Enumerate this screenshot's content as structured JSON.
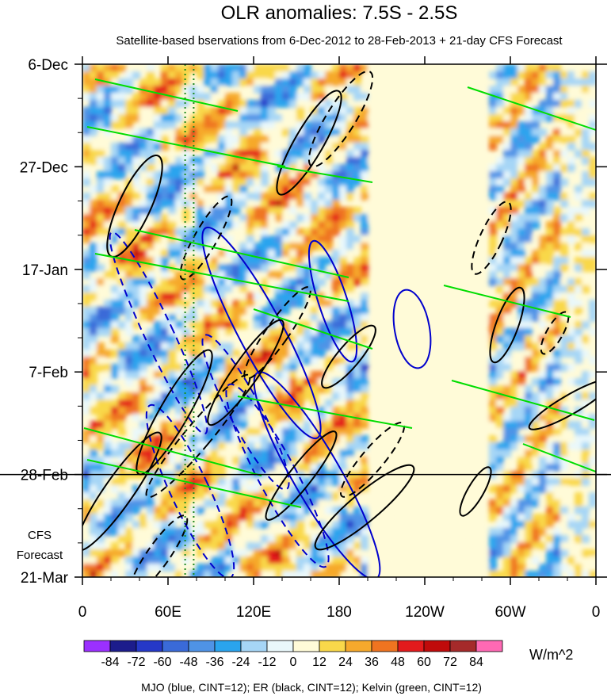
{
  "chart_data": {
    "type": "heatmap",
    "title": "OLR anomalies: 7.5S - 2.5S",
    "subtitle": "Satellite-based bservations from 6-Dec-2012 to 28-Feb-2013 + 21-day CFS Forecast",
    "x_ticks": [
      {
        "lon": 0,
        "label": "0"
      },
      {
        "lon": 60,
        "label": "60E"
      },
      {
        "lon": 120,
        "label": "120E"
      },
      {
        "lon": 180,
        "label": "180"
      },
      {
        "lon": 240,
        "label": "120W"
      },
      {
        "lon": 300,
        "label": "60W"
      },
      {
        "lon": 360,
        "label": "0"
      }
    ],
    "xlim": [
      0,
      360
    ],
    "y_ticks": [
      {
        "day": 0,
        "label": "6-Dec"
      },
      {
        "day": 21,
        "label": "27-Dec"
      },
      {
        "day": 42,
        "label": "17-Jan"
      },
      {
        "day": 63,
        "label": "7-Feb"
      },
      {
        "day": 84,
        "label": "28-Feb"
      },
      {
        "day": 105,
        "label": "21-Mar"
      }
    ],
    "ylim": [
      "6-Dec-2012",
      "21-Mar-2013"
    ],
    "forecast_start": {
      "day": 84,
      "label": "28-Feb"
    },
    "forecast_label": [
      "CFS",
      "Forecast"
    ],
    "colorbar": {
      "units": "W/m^2",
      "levels": [
        -84,
        -72,
        -60,
        -48,
        -36,
        -24,
        -12,
        0,
        12,
        24,
        36,
        48,
        60,
        72,
        84
      ],
      "level_labels": [
        "-84",
        "-72",
        "-60",
        "-48",
        "-36",
        "-24",
        "-12",
        "0",
        "12",
        "24",
        "36",
        "48",
        "60",
        "72",
        "84"
      ],
      "colors": [
        "#9b30ff",
        "#1c1c8c",
        "#2538c8",
        "#3a6ad8",
        "#4f93e6",
        "#2aa4ee",
        "#a6d6f6",
        "#e9f8fb",
        "#fffbd8",
        "#f9d84a",
        "#f6a92c",
        "#ef7420",
        "#e31a1c",
        "#c00b0b",
        "#a52a2a",
        "#ff69b4"
      ]
    },
    "overlays": [
      {
        "name": "MJO",
        "color": "#0000cd",
        "cint": 12
      },
      {
        "name": "ER",
        "color": "#000000",
        "cint": 12
      },
      {
        "name": "Kelvin",
        "color": "#00dd00",
        "cint": 12
      }
    ],
    "reference_lines": [
      {
        "lon": 72,
        "color": "#1f8a1f",
        "style": "dotted"
      },
      {
        "lon": 78,
        "color": "#1f8a1f",
        "style": "dotted"
      }
    ],
    "caption": "MJO (blue, CINT=12); ER (black, CINT=12); Kelvin (green, CINT=12)",
    "grid": false
  }
}
